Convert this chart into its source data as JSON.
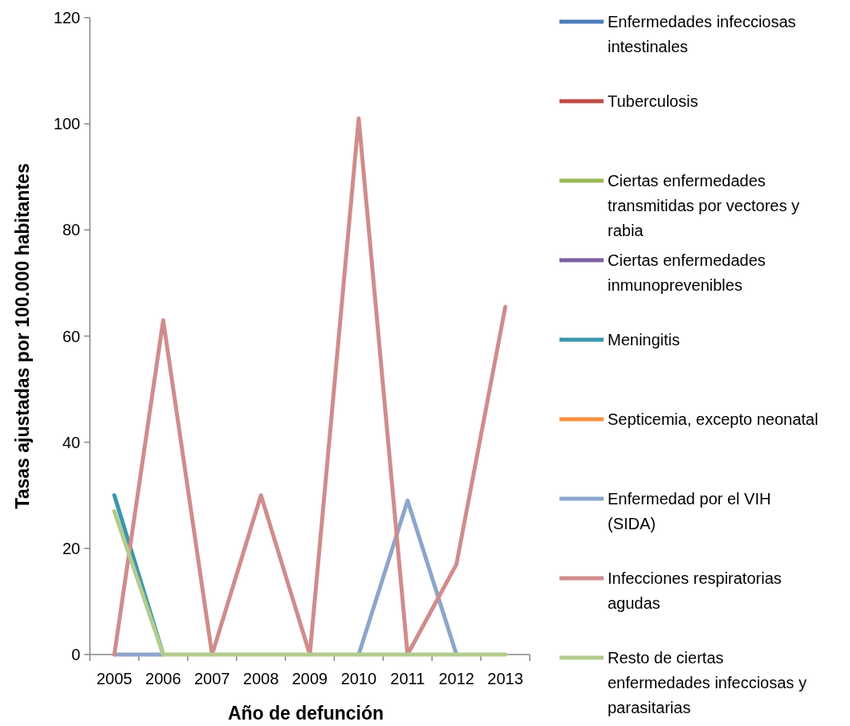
{
  "chart_data": {
    "type": "line",
    "xlabel": "Año de defunción",
    "ylabel": "Tasas ajustadas por 100.000 habitantes",
    "categories": [
      "2005",
      "2006",
      "2007",
      "2008",
      "2009",
      "2010",
      "2011",
      "2012",
      "2013"
    ],
    "ylim": [
      0,
      120
    ],
    "yticks": [
      0,
      20,
      40,
      60,
      80,
      100,
      120
    ],
    "grid": false,
    "legend": "right",
    "marker": "none",
    "line_style": "solid",
    "series": [
      {
        "name": "Enfermedades infecciosas intestinales",
        "color": "#4a7ebb",
        "values": [
          null,
          null,
          null,
          null,
          null,
          null,
          null,
          null,
          null
        ]
      },
      {
        "name": "Tuberculosis",
        "color": "#be4b48",
        "values": [
          null,
          null,
          null,
          null,
          null,
          null,
          null,
          null,
          null
        ]
      },
      {
        "name": "Ciertas enfermedades transmitidas por vectores y rabia",
        "color": "#98b954",
        "values": [
          null,
          null,
          null,
          null,
          null,
          null,
          null,
          null,
          null
        ]
      },
      {
        "name": "Ciertas enfermedades inmunoprevenibles",
        "color": "#7d60a0",
        "values": [
          null,
          null,
          null,
          null,
          null,
          null,
          null,
          null,
          null
        ]
      },
      {
        "name": "Meningitis",
        "color": "#3d96ae",
        "values": [
          30,
          0,
          null,
          null,
          null,
          null,
          null,
          null,
          null
        ]
      },
      {
        "name": "Septicemia, excepto neonatal",
        "color": "#f69240",
        "values": [
          null,
          null,
          null,
          null,
          null,
          null,
          null,
          null,
          null
        ]
      },
      {
        "name": "Enfermedad por el VIH (SIDA)",
        "color": "#8ea5cb",
        "values": [
          0,
          0,
          null,
          null,
          null,
          0,
          29,
          0,
          null
        ]
      },
      {
        "name": "Infecciones respiratorias agudas",
        "color": "#d08c8c",
        "values": [
          0,
          63,
          0,
          30,
          0,
          101,
          0,
          17,
          65.5
        ]
      },
      {
        "name": "Resto de ciertas enfermedades infecciosas y parasitarias",
        "color": "#b3cc8e",
        "values": [
          27,
          0,
          0,
          0,
          0,
          0,
          0,
          0,
          0
        ]
      }
    ]
  }
}
